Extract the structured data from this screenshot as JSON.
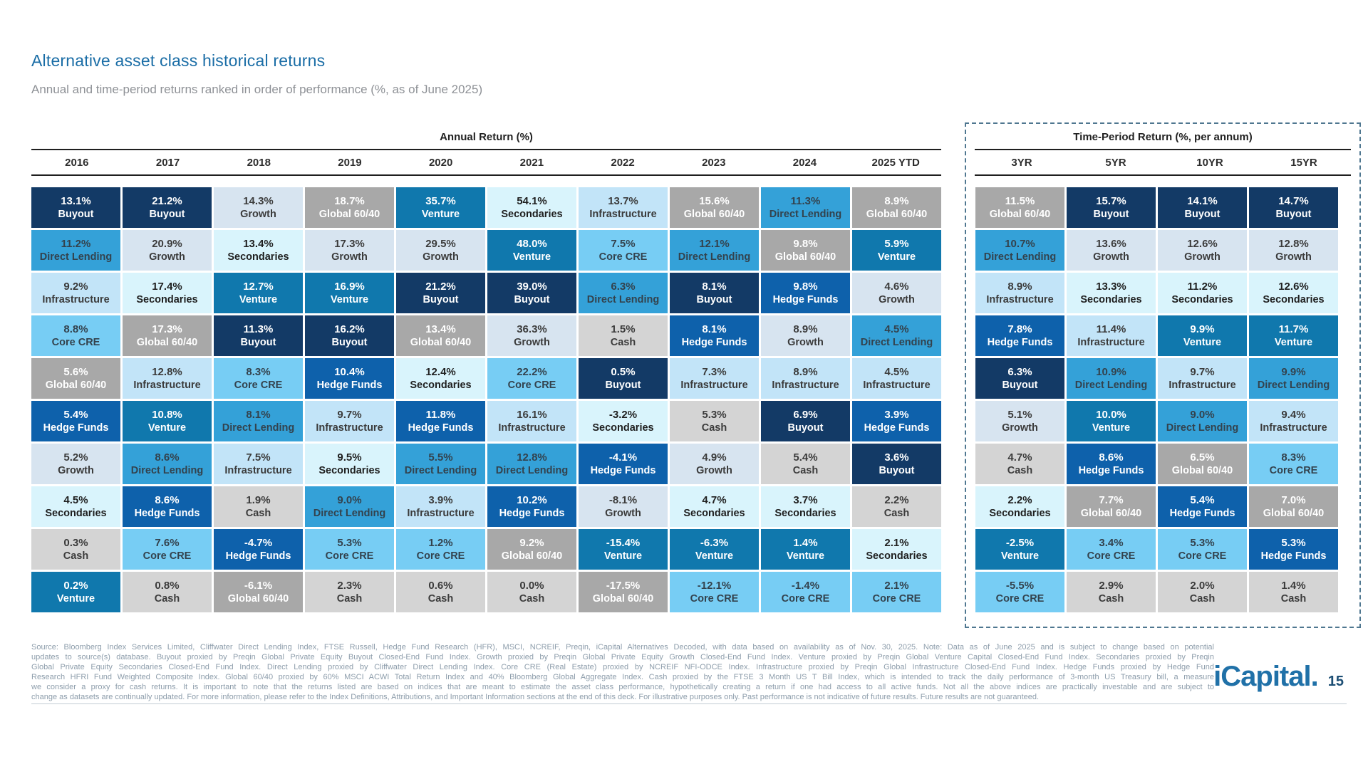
{
  "page": {
    "title": "Alternative asset class historical returns",
    "subtitle": "Annual and time-period returns ranked in order of performance (%, as of June 2025)"
  },
  "styles": {
    "Buyout": {
      "bg": "#133a66",
      "fg": "#ffffff"
    },
    "Growth": {
      "bg": "#d7e4f0",
      "fg": "#3b3b3b"
    },
    "Secondaries": {
      "bg": "#d9f4fc",
      "fg": "#1f1f1f"
    },
    "Global 60/40": {
      "bg": "#a8a8a8",
      "fg": "#ffffff"
    },
    "Venture": {
      "bg": "#1078ad",
      "fg": "#ffffff"
    },
    "Direct Lending": {
      "bg": "#34a1d8",
      "fg": "#33424d"
    },
    "Infrastructure": {
      "bg": "#c2e4f8",
      "fg": "#3b3b3b"
    },
    "Core CRE": {
      "bg": "#77cdf4",
      "fg": "#33424d"
    },
    "Hedge Funds": {
      "bg": "#0e61ab",
      "fg": "#ffffff"
    },
    "Cash": {
      "bg": "#d4d4d4",
      "fg": "#3b3b3b"
    }
  },
  "chart_data": {
    "type": "heatmap",
    "title": "Alternative asset class historical returns",
    "subtitle": "Annual and time-period returns ranked in order of performance (%, as of June 2025)",
    "asset_classes": [
      "Buyout",
      "Growth",
      "Secondaries",
      "Global 60/40",
      "Venture",
      "Direct Lending",
      "Infrastructure",
      "Core CRE",
      "Hedge Funds",
      "Cash"
    ],
    "annual": {
      "title": "Annual Return (%)",
      "columns": [
        "2016",
        "2017",
        "2018",
        "2019",
        "2020",
        "2021",
        "2022",
        "2023",
        "2024",
        "2025 YTD"
      ],
      "ranked": {
        "2016": [
          [
            "13.1%",
            "Buyout"
          ],
          [
            "11.2%",
            "Direct Lending"
          ],
          [
            "9.2%",
            "Infrastructure"
          ],
          [
            "8.8%",
            "Core CRE"
          ],
          [
            "5.6%",
            "Global 60/40"
          ],
          [
            "5.4%",
            "Hedge Funds"
          ],
          [
            "5.2%",
            "Growth"
          ],
          [
            "4.5%",
            "Secondaries"
          ],
          [
            "0.3%",
            "Cash"
          ],
          [
            "0.2%",
            "Venture"
          ]
        ],
        "2017": [
          [
            "21.2%",
            "Buyout"
          ],
          [
            "20.9%",
            "Growth"
          ],
          [
            "17.4%",
            "Secondaries"
          ],
          [
            "17.3%",
            "Global 60/40"
          ],
          [
            "12.8%",
            "Infrastructure"
          ],
          [
            "10.8%",
            "Venture"
          ],
          [
            "8.6%",
            "Direct Lending"
          ],
          [
            "8.6%",
            "Hedge Funds"
          ],
          [
            "7.6%",
            "Core CRE"
          ],
          [
            "0.8%",
            "Cash"
          ]
        ],
        "2018": [
          [
            "14.3%",
            "Growth"
          ],
          [
            "13.4%",
            "Secondaries"
          ],
          [
            "12.7%",
            "Venture"
          ],
          [
            "11.3%",
            "Buyout"
          ],
          [
            "8.3%",
            "Core CRE"
          ],
          [
            "8.1%",
            "Direct Lending"
          ],
          [
            "7.5%",
            "Infrastructure"
          ],
          [
            "1.9%",
            "Cash"
          ],
          [
            "-4.7%",
            "Hedge Funds"
          ],
          [
            "-6.1%",
            "Global 60/40"
          ]
        ],
        "2019": [
          [
            "18.7%",
            "Global 60/40"
          ],
          [
            "17.3%",
            "Growth"
          ],
          [
            "16.9%",
            "Venture"
          ],
          [
            "16.2%",
            "Buyout"
          ],
          [
            "10.4%",
            "Hedge Funds"
          ],
          [
            "9.7%",
            "Infrastructure"
          ],
          [
            "9.5%",
            "Secondaries"
          ],
          [
            "9.0%",
            "Direct Lending"
          ],
          [
            "5.3%",
            "Core CRE"
          ],
          [
            "2.3%",
            "Cash"
          ]
        ],
        "2020": [
          [
            "35.7%",
            "Venture"
          ],
          [
            "29.5%",
            "Growth"
          ],
          [
            "21.2%",
            "Buyout"
          ],
          [
            "13.4%",
            "Global 60/40"
          ],
          [
            "12.4%",
            "Secondaries"
          ],
          [
            "11.8%",
            "Hedge Funds"
          ],
          [
            "5.5%",
            "Direct Lending"
          ],
          [
            "3.9%",
            "Infrastructure"
          ],
          [
            "1.2%",
            "Core CRE"
          ],
          [
            "0.6%",
            "Cash"
          ]
        ],
        "2021": [
          [
            "54.1%",
            "Secondaries"
          ],
          [
            "48.0%",
            "Venture"
          ],
          [
            "39.0%",
            "Buyout"
          ],
          [
            "36.3%",
            "Growth"
          ],
          [
            "22.2%",
            "Core CRE"
          ],
          [
            "16.1%",
            "Infrastructure"
          ],
          [
            "12.8%",
            "Direct Lending"
          ],
          [
            "10.2%",
            "Hedge Funds"
          ],
          [
            "9.2%",
            "Global 60/40"
          ],
          [
            "0.0%",
            "Cash"
          ]
        ],
        "2022": [
          [
            "13.7%",
            "Infrastructure"
          ],
          [
            "7.5%",
            "Core CRE"
          ],
          [
            "6.3%",
            "Direct Lending"
          ],
          [
            "1.5%",
            "Cash"
          ],
          [
            "0.5%",
            "Buyout"
          ],
          [
            "-3.2%",
            "Secondaries"
          ],
          [
            "-4.1%",
            "Hedge Funds"
          ],
          [
            "-8.1%",
            "Growth"
          ],
          [
            "-15.4%",
            "Venture"
          ],
          [
            "-17.5%",
            "Global 60/40"
          ]
        ],
        "2023": [
          [
            "15.6%",
            "Global 60/40"
          ],
          [
            "12.1%",
            "Direct Lending"
          ],
          [
            "8.1%",
            "Buyout"
          ],
          [
            "8.1%",
            "Hedge Funds"
          ],
          [
            "7.3%",
            "Infrastructure"
          ],
          [
            "5.3%",
            "Cash"
          ],
          [
            "4.9%",
            "Growth"
          ],
          [
            "4.7%",
            "Secondaries"
          ],
          [
            "-6.3%",
            "Venture"
          ],
          [
            "-12.1%",
            "Core CRE"
          ]
        ],
        "2024": [
          [
            "11.3%",
            "Direct Lending"
          ],
          [
            "9.8%",
            "Global 60/40"
          ],
          [
            "9.8%",
            "Hedge Funds"
          ],
          [
            "8.9%",
            "Growth"
          ],
          [
            "8.9%",
            "Infrastructure"
          ],
          [
            "6.9%",
            "Buyout"
          ],
          [
            "5.4%",
            "Cash"
          ],
          [
            "3.7%",
            "Secondaries"
          ],
          [
            "1.4%",
            "Venture"
          ],
          [
            "-1.4%",
            "Core CRE"
          ]
        ],
        "2025 YTD": [
          [
            "8.9%",
            "Global 60/40"
          ],
          [
            "5.9%",
            "Venture"
          ],
          [
            "4.6%",
            "Growth"
          ],
          [
            "4.5%",
            "Direct Lending"
          ],
          [
            "4.5%",
            "Infrastructure"
          ],
          [
            "3.9%",
            "Hedge Funds"
          ],
          [
            "3.6%",
            "Buyout"
          ],
          [
            "2.2%",
            "Cash"
          ],
          [
            "2.1%",
            "Secondaries"
          ],
          [
            "2.1%",
            "Core CRE"
          ]
        ]
      }
    },
    "period": {
      "title": "Time-Period Return (%, per annum)",
      "columns": [
        "3YR",
        "5YR",
        "10YR",
        "15YR"
      ],
      "ranked": {
        "3YR": [
          [
            "11.5%",
            "Global 60/40"
          ],
          [
            "10.7%",
            "Direct Lending"
          ],
          [
            "8.9%",
            "Infrastructure"
          ],
          [
            "7.8%",
            "Hedge Funds"
          ],
          [
            "6.3%",
            "Buyout"
          ],
          [
            "5.1%",
            "Growth"
          ],
          [
            "4.7%",
            "Cash"
          ],
          [
            "2.2%",
            "Secondaries"
          ],
          [
            "-2.5%",
            "Venture"
          ],
          [
            "-5.5%",
            "Core CRE"
          ]
        ],
        "5YR": [
          [
            "15.7%",
            "Buyout"
          ],
          [
            "13.6%",
            "Growth"
          ],
          [
            "13.3%",
            "Secondaries"
          ],
          [
            "11.4%",
            "Infrastructure"
          ],
          [
            "10.9%",
            "Direct Lending"
          ],
          [
            "10.0%",
            "Venture"
          ],
          [
            "8.6%",
            "Hedge Funds"
          ],
          [
            "7.7%",
            "Global 60/40"
          ],
          [
            "3.4%",
            "Core CRE"
          ],
          [
            "2.9%",
            "Cash"
          ]
        ],
        "10YR": [
          [
            "14.1%",
            "Buyout"
          ],
          [
            "12.6%",
            "Growth"
          ],
          [
            "11.2%",
            "Secondaries"
          ],
          [
            "9.9%",
            "Venture"
          ],
          [
            "9.7%",
            "Infrastructure"
          ],
          [
            "9.0%",
            "Direct Lending"
          ],
          [
            "6.5%",
            "Global 60/40"
          ],
          [
            "5.4%",
            "Hedge Funds"
          ],
          [
            "5.3%",
            "Core CRE"
          ],
          [
            "2.0%",
            "Cash"
          ]
        ],
        "15YR": [
          [
            "14.7%",
            "Buyout"
          ],
          [
            "12.8%",
            "Growth"
          ],
          [
            "12.6%",
            "Secondaries"
          ],
          [
            "11.7%",
            "Venture"
          ],
          [
            "9.9%",
            "Direct Lending"
          ],
          [
            "9.4%",
            "Infrastructure"
          ],
          [
            "8.3%",
            "Core CRE"
          ],
          [
            "7.0%",
            "Global 60/40"
          ],
          [
            "5.3%",
            "Hedge Funds"
          ],
          [
            "1.4%",
            "Cash"
          ]
        ]
      }
    }
  },
  "footer": {
    "lines": [
      "Source: Bloomberg Index Services Limited, Cliffwater Direct Lending Index, FTSE Russell, Hedge Fund Research (HFR), MSCI, NCREIF, Preqin, iCapital Alternatives Decoded, with data based on availability as of Nov. 30, 2025. Note: Data as of June 2025 and is subject to change based on potential",
      "updates to source(s) database. Buyout proxied by Preqin Global Private Equity Buyout Closed-End Fund Index. Growth proxied by Preqin Global Private Equity Growth Closed-End Fund Index. Venture proxied by Preqin Global Venture Capital Closed-End Fund Index. Secondaries proxied by Preqin",
      "Global Private Equity Secondaries Closed-End Fund Index. Direct Lending proxied by Cliffwater Direct Lending Index. Core CRE (Real Estate) proxied by NCREIF NFI-ODCE Index. Infrastructure proxied by Preqin Global Infrastructure Closed-End Fund Index. Hedge Funds proxied by Hedge Fund",
      "Research HFRI Fund Weighted Composite Index. Global 60/40 proxied by 60% MSCI ACWI Total Return Index and 40% Bloomberg Global Aggregate Index. Cash proxied by the FTSE 3 Month US T Bill Index, which is intended to track the daily performance of 3-month US Treasury bill, a measure",
      "we consider a proxy for cash returns. It is important to note that the returns listed are based on indices that are meant to estimate the asset class performance, hypothetically creating a return if one had access to all active funds. Not all the above indices are practically investable and are subject to",
      "change as datasets are continually updated. For more information, please refer to the Index Definitions, Attributions, and Important Information sections at the end of this deck. For illustrative purposes only. Past performance is not indicative of future results. Future results are not guaranteed."
    ],
    "logo_text": "iCapital",
    "logo_dot": ".",
    "page_number": "15"
  }
}
